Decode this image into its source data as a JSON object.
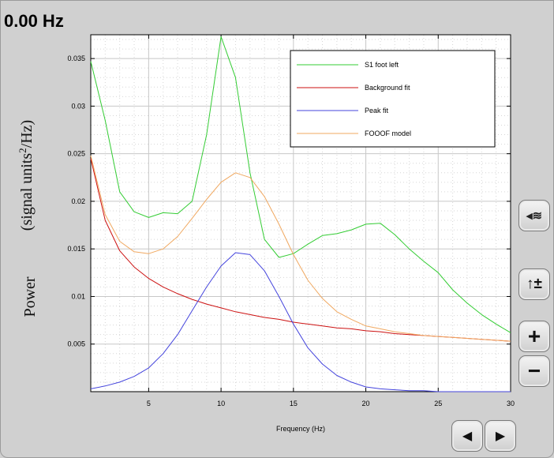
{
  "header": {
    "frequency_readout": "0.00 Hz"
  },
  "chart_data": {
    "type": "line",
    "xlabel": "Frequency (Hz)",
    "ylabel_parts": {
      "power": "Power",
      "units_pre": "(signal  units",
      "units_sup": "2",
      "units_post": "/Hz)"
    },
    "xlim": [
      1,
      30
    ],
    "ylim": [
      0,
      0.0375
    ],
    "xticks": [
      5,
      10,
      15,
      20,
      25,
      30
    ],
    "yticks": [
      0.005,
      0.01,
      0.015,
      0.02,
      0.025,
      0.03,
      0.035
    ],
    "ytick_labels": [
      "0.005",
      "0.01",
      "0.015",
      "0.02",
      "0.025",
      "0.03",
      "0.035"
    ],
    "grid": true,
    "legend_position": "top-right",
    "x": [
      1,
      2,
      3,
      4,
      5,
      6,
      7,
      8,
      9,
      10,
      11,
      12,
      13,
      14,
      15,
      16,
      17,
      18,
      19,
      20,
      21,
      22,
      23,
      24,
      25,
      26,
      27,
      28,
      29,
      30
    ],
    "series": [
      {
        "name": "S1 foot left",
        "color": "#33cc33",
        "values": [
          0.0347,
          0.0285,
          0.021,
          0.0189,
          0.0183,
          0.0188,
          0.0187,
          0.02,
          0.027,
          0.0373,
          0.033,
          0.023,
          0.016,
          0.0141,
          0.0145,
          0.0155,
          0.0164,
          0.0166,
          0.017,
          0.0176,
          0.0177,
          0.0165,
          0.015,
          0.0137,
          0.0125,
          0.0107,
          0.0093,
          0.0081,
          0.0071,
          0.0062
        ]
      },
      {
        "name": "Background fit",
        "color": "#cc1111",
        "values": [
          0.0245,
          0.018,
          0.0148,
          0.0131,
          0.0119,
          0.011,
          0.0103,
          0.0097,
          0.0092,
          0.0088,
          0.0084,
          0.0081,
          0.0078,
          0.0076,
          0.0073,
          0.0071,
          0.0069,
          0.0067,
          0.0066,
          0.0064,
          0.0063,
          0.0061,
          0.006,
          0.0059,
          0.0058,
          0.0057,
          0.0056,
          0.0055,
          0.0054,
          0.0053
        ]
      },
      {
        "name": "Peak fit",
        "color": "#4444dd",
        "values": [
          0.0003,
          0.0006,
          0.001,
          0.0016,
          0.0025,
          0.004,
          0.006,
          0.0085,
          0.011,
          0.0132,
          0.0146,
          0.0144,
          0.0127,
          0.01,
          0.0071,
          0.0046,
          0.0029,
          0.0017,
          0.001,
          0.0005,
          0.0003,
          0.0002,
          0.0001,
          0.0001,
          0.0,
          0.0,
          0.0,
          0.0,
          0.0,
          0.0
        ]
      },
      {
        "name": "FOOOF model",
        "color": "#f0a860",
        "values": [
          0.0248,
          0.0186,
          0.0158,
          0.0147,
          0.0145,
          0.015,
          0.0163,
          0.0182,
          0.0202,
          0.022,
          0.023,
          0.0225,
          0.0205,
          0.0176,
          0.0144,
          0.0117,
          0.0098,
          0.0084,
          0.0076,
          0.0069,
          0.0066,
          0.0063,
          0.0061,
          0.0059,
          0.0058,
          0.0057,
          0.0056,
          0.0055,
          0.0054,
          0.0053
        ]
      }
    ]
  },
  "controls": {
    "wave_icon_glyph": "◂≋",
    "scale_icon_glyph": "↑±",
    "zoom_in_glyph": "+",
    "zoom_out_glyph": "−",
    "prev_glyph": "◀",
    "next_glyph": "▶"
  }
}
